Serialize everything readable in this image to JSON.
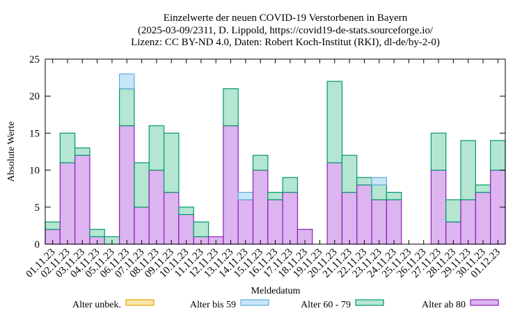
{
  "chart_data": {
    "type": "bar",
    "stacked": true,
    "title_lines": [
      "Einzelwerte der neuen COVID-19 Verstorbenen in Bayern",
      "(2025-03-09/2311, D. Lippold, https://covid19-de-stats.sourceforge.io/",
      "Lizenz: CC BY-ND 4.0, Daten: Robert Koch-Institut (RKI), dl-de/by-2-0)"
    ],
    "xlabel": "Meldedatum",
    "ylabel": "Absolute Werte",
    "ylim": [
      0,
      25
    ],
    "yticks": [
      0,
      5,
      10,
      15,
      20,
      25
    ],
    "categories": [
      "01.11.23",
      "02.11.23",
      "03.11.23",
      "04.11.23",
      "05.11.23",
      "06.11.23",
      "07.11.23",
      "08.11.23",
      "09.11.23",
      "10.11.23",
      "11.11.23",
      "12.11.23",
      "13.11.23",
      "14.11.23",
      "15.11.23",
      "16.11.23",
      "17.11.23",
      "18.11.23",
      "19.11.23",
      "20.11.23",
      "21.11.23",
      "22.11.23",
      "23.11.23",
      "24.11.23",
      "25.11.23",
      "26.11.23",
      "27.11.23",
      "28.11.23",
      "29.11.23",
      "30.11.23",
      "01.12.23"
    ],
    "series": [
      {
        "name": "Alter ab 80",
        "fill": "#dcb4f0",
        "stroke": "#8c1eb4",
        "values": [
          2,
          11,
          12,
          1,
          0,
          16,
          5,
          10,
          7,
          4,
          1,
          1,
          16,
          6,
          10,
          6,
          7,
          2,
          0,
          11,
          7,
          8,
          6,
          6,
          0,
          0,
          10,
          3,
          6,
          7,
          10
        ]
      },
      {
        "name": "Alter 60 - 79",
        "fill": "#b4e6d2",
        "stroke": "#00966e",
        "values": [
          1,
          4,
          1,
          1,
          1,
          5,
          6,
          6,
          8,
          1,
          2,
          0,
          5,
          0,
          2,
          1,
          2,
          0,
          0,
          11,
          5,
          1,
          2,
          1,
          0,
          0,
          5,
          3,
          8,
          1,
          4
        ]
      },
      {
        "name": "Alter bis 59",
        "fill": "#c8e6fa",
        "stroke": "#5aaad7",
        "values": [
          0,
          0,
          0,
          0,
          0,
          2,
          0,
          0,
          0,
          0,
          0,
          0,
          0,
          1,
          0,
          0,
          0,
          0,
          0,
          0,
          0,
          0,
          1,
          0,
          0,
          0,
          0,
          0,
          0,
          0,
          0
        ]
      },
      {
        "name": "Alter unbek.",
        "fill": "#fae6aa",
        "stroke": "#e6a000",
        "values": [
          0,
          0,
          0,
          0,
          0,
          0,
          0,
          0,
          0,
          0,
          0,
          0,
          0,
          0,
          0,
          0,
          0,
          0,
          0,
          0,
          0,
          0,
          0,
          0,
          0,
          0,
          0,
          0,
          0,
          0,
          0
        ]
      }
    ],
    "legend_order": [
      "Alter unbek.",
      "Alter bis 59",
      "Alter 60 - 79",
      "Alter ab 80"
    ],
    "legend_position": "bottom",
    "grid": false
  }
}
